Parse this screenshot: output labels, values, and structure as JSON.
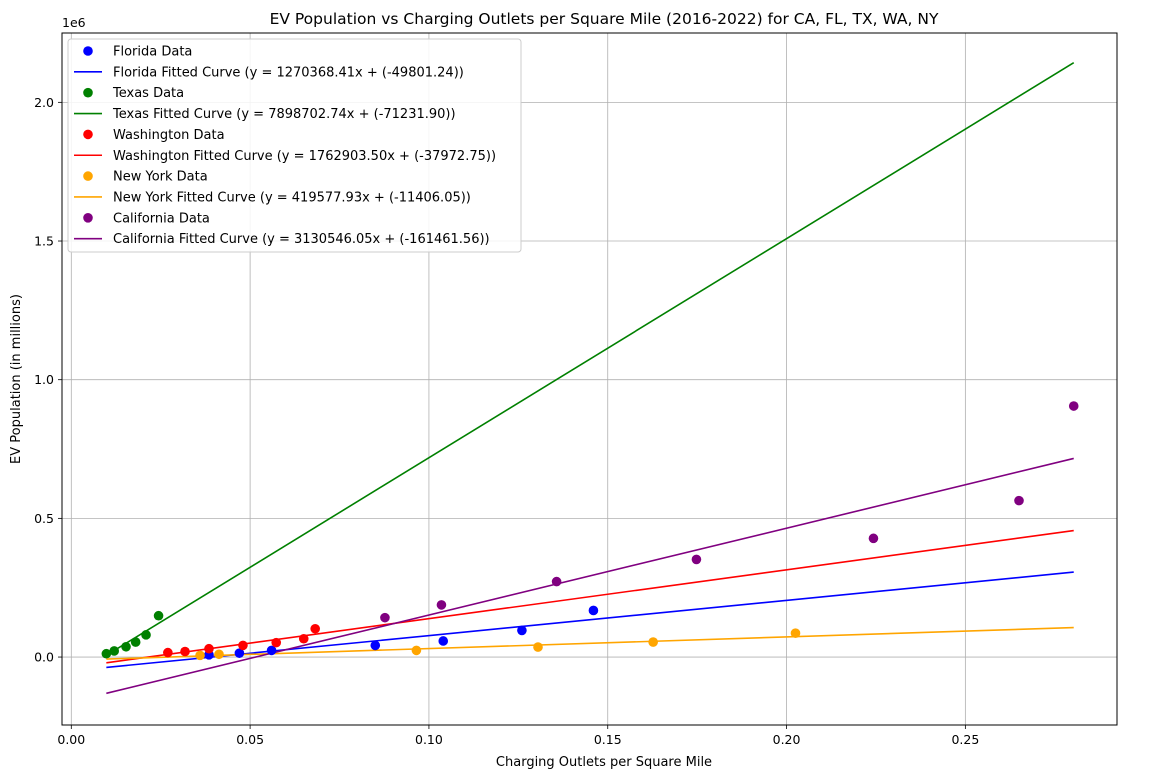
{
  "chart_data": {
    "type": "scatter",
    "title": "EV Population vs Charging Outlets per Square Mile (2016-2022) for CA, FL, TX, WA, NY",
    "xlabel": "Charging Outlets per Square Mile",
    "ylabel": "EV Population (in millions)",
    "y_offset_label": "1e6",
    "xlim": [
      -0.0026,
      0.2924
    ],
    "ylim": [
      -245000,
      2250000
    ],
    "x_ticks": [
      0.0,
      0.05,
      0.1,
      0.15,
      0.2,
      0.25
    ],
    "x_tick_labels": [
      "0.00",
      "0.05",
      "0.10",
      "0.15",
      "0.20",
      "0.25"
    ],
    "y_ticks": [
      0,
      500000,
      1000000,
      1500000,
      2000000
    ],
    "y_tick_labels": [
      "0.0",
      "0.5",
      "1.0",
      "1.5",
      "2.0"
    ],
    "grid": true,
    "legend_position": "upper-left",
    "series": [
      {
        "name": "Florida Data",
        "fit_name": "Florida Fitted Curve (y = 1270368.41x + (-49801.24))",
        "color": "#0000ff",
        "slope": 1270368.41,
        "intercept": -49801.24,
        "x": [
          0.0385,
          0.047,
          0.056,
          0.085,
          0.104,
          0.126,
          0.146
        ],
        "y": [
          8000,
          14000,
          24000,
          42000,
          58000,
          96000,
          168000
        ]
      },
      {
        "name": "Texas Data",
        "fit_name": "Texas Fitted Curve (y = 7898702.74x + (-71231.90))",
        "color": "#008000",
        "slope": 7898702.74,
        "intercept": -71231.9,
        "x": [
          0.0098,
          0.012,
          0.0153,
          0.018,
          0.0209,
          0.0244
        ],
        "y": [
          12000,
          22000,
          37000,
          54000,
          80000,
          149000
        ]
      },
      {
        "name": "Washington Data",
        "fit_name": "Washington Fitted Curve (y = 1762903.50x + (-37972.75))",
        "color": "#ff0000",
        "slope": 1762903.5,
        "intercept": -37972.75,
        "x": [
          0.027,
          0.0318,
          0.0385,
          0.048,
          0.0573,
          0.065,
          0.0682
        ],
        "y": [
          16000,
          20000,
          30000,
          42000,
          52000,
          66000,
          102000
        ]
      },
      {
        "name": "New York Data",
        "fit_name": "New York Fitted Curve (y = 419577.93x + (-11406.05))",
        "color": "#ffa500",
        "slope": 419577.93,
        "intercept": -11406.05,
        "x": [
          0.036,
          0.0413,
          0.0965,
          0.1305,
          0.1627,
          0.2025
        ],
        "y": [
          6000,
          10000,
          24000,
          36000,
          54000,
          86000
        ]
      },
      {
        "name": "California Data",
        "fit_name": "California Fitted Curve (y = 3130546.05x + (-161461.56))",
        "color": "#800080",
        "slope": 3130546.05,
        "intercept": -161461.56,
        "x": [
          0.0877,
          0.1035,
          0.1357,
          0.1748,
          0.2243,
          0.265,
          0.2803
        ],
        "y": [
          142000,
          188000,
          272000,
          352000,
          428000,
          564000,
          905000
        ]
      }
    ]
  }
}
